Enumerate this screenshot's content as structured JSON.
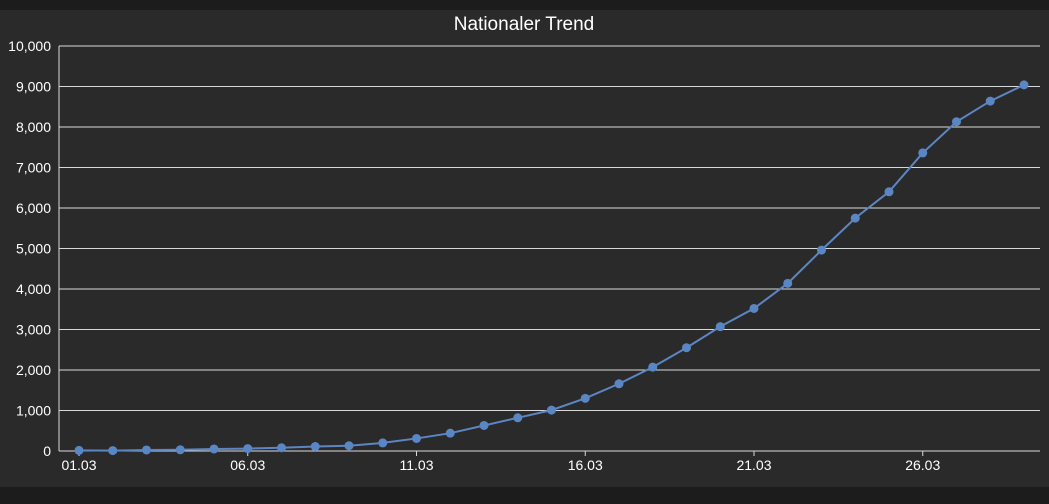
{
  "chart_data": {
    "type": "line",
    "title": "Nationaler Trend",
    "xlabel": "",
    "ylabel": "",
    "x": [
      "01.03",
      "02.03",
      "03.03",
      "04.03",
      "05.03",
      "06.03",
      "07.03",
      "08.03",
      "09.03",
      "10.03",
      "11.03",
      "12.03",
      "13.03",
      "14.03",
      "15.03",
      "16.03",
      "17.03",
      "18.03",
      "19.03",
      "20.03",
      "21.03",
      "22.03",
      "23.03",
      "24.03",
      "25.03",
      "26.03",
      "27.03",
      "28.03",
      "29.03"
    ],
    "x_tick_labels": [
      "01.03",
      "06.03",
      "11.03",
      "16.03",
      "21.03",
      "26.03"
    ],
    "ylim": [
      0,
      10000
    ],
    "y_tick_labels": [
      "0",
      "1,000",
      "2,000",
      "3,000",
      "4,000",
      "5,000",
      "6,000",
      "7,000",
      "8,000",
      "9,000",
      "10,000"
    ],
    "grid": true,
    "legend": "none",
    "series": [
      {
        "values": [
          15,
          10,
          25,
          30,
          50,
          60,
          80,
          110,
          130,
          200,
          310,
          440,
          630,
          820,
          1010,
          1300,
          1660,
          2070,
          2550,
          3070,
          3520,
          4140,
          4960,
          5750,
          6400,
          7360,
          8130,
          8640,
          9040
        ],
        "color": "#5b86c4"
      }
    ]
  }
}
